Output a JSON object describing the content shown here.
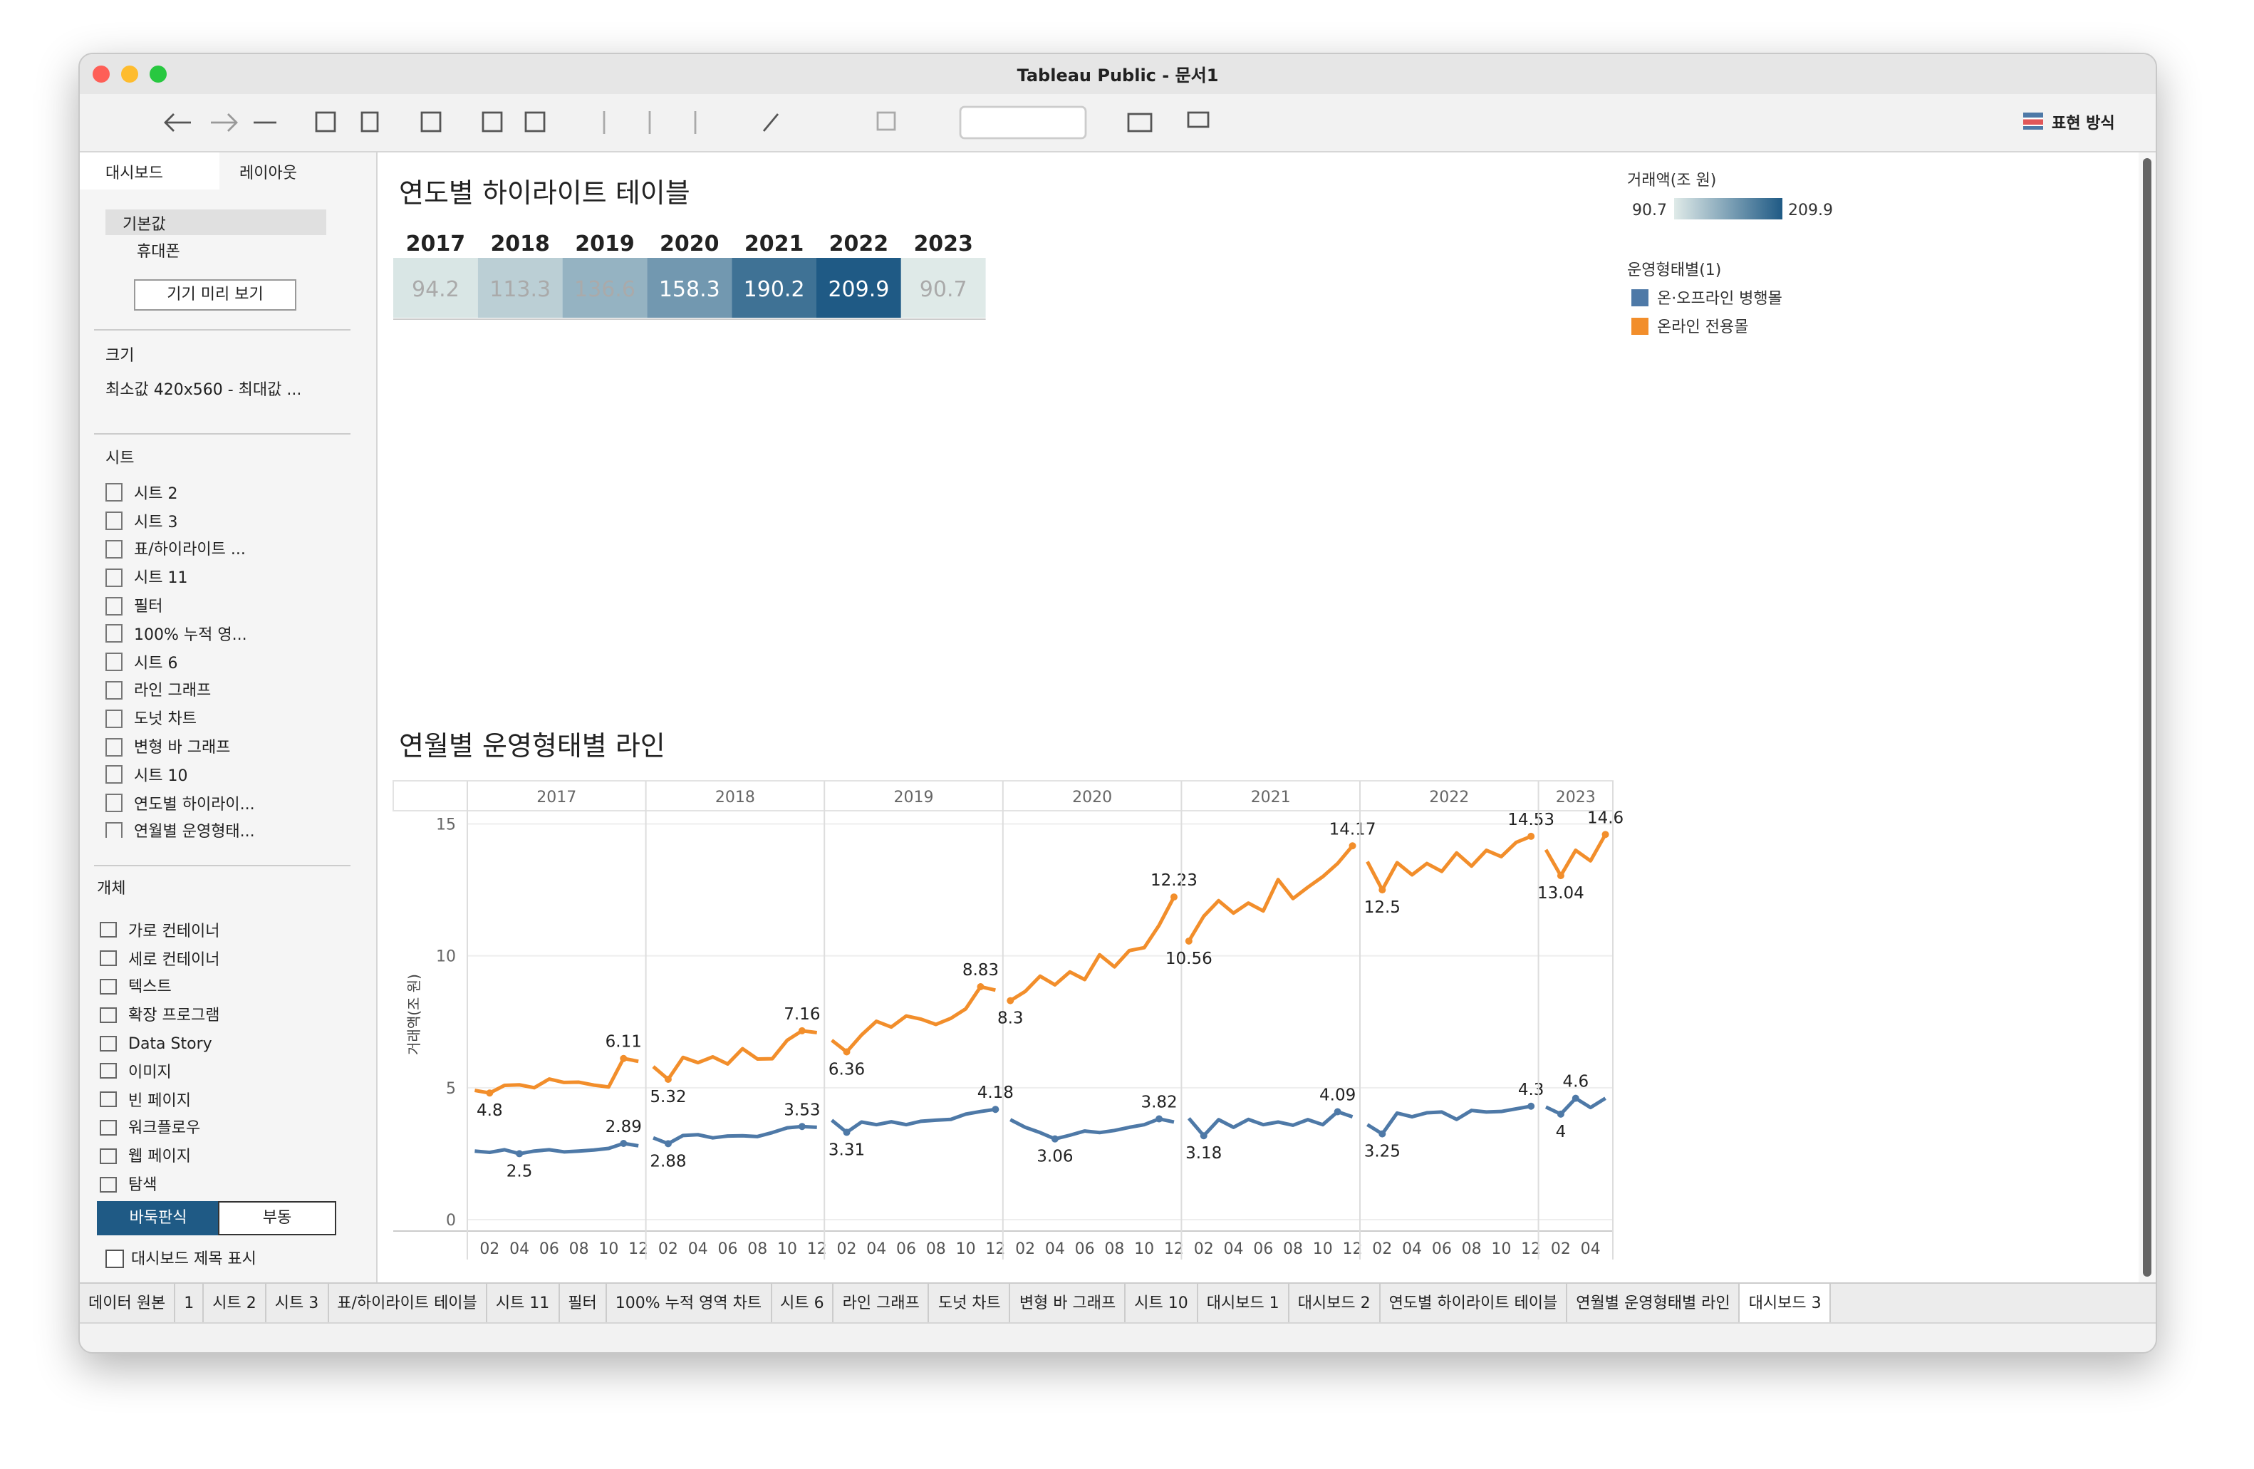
{
  "window": {
    "title": "Tableau Public - 문서1"
  },
  "toolbar": {
    "show_me": "표현 방식"
  },
  "sidebar": {
    "tabs": [
      "대시보드",
      "레이아웃"
    ],
    "devices": [
      "기본값",
      "휴대폰"
    ],
    "preview_button": "기기 미리 보기",
    "size_heading": "크기",
    "size_value": "최소값 420x560 - 최대값 ...",
    "sheets_heading": "시트",
    "sheets": [
      "시트 2",
      "시트 3",
      "표/하이라이트 ...",
      "시트 11",
      "필터",
      "100% 누적 영...",
      "시트 6",
      "라인 그래프",
      "도넛 차트",
      "변형 바 그래프",
      "시트 10",
      "연도별 하이라이...",
      "연월별 운영형태..."
    ],
    "objects_heading": "개체",
    "objects": [
      "가로 컨테이너",
      "세로 컨테이너",
      "텍스트",
      "확장 프로그램",
      "Data Story",
      "이미지",
      "빈 페이지",
      "워크플로우",
      "웹 페이지",
      "탐색"
    ],
    "layout_modes": [
      "바둑판식",
      "부동"
    ],
    "show_title": "대시보드 제목 표시"
  },
  "sheet_tabs": [
    "데이터 원본",
    "1",
    "시트 2",
    "시트 3",
    "표/하이라이트 테이블",
    "시트 11",
    "필터",
    "100% 누적 영역 차트",
    "시트 6",
    "라인 그래프",
    "도넛 차트",
    "변형 바 그래프",
    "시트 10",
    "대시보드 1",
    "대시보드 2",
    "연도별 하이라이트 테이블",
    "연월별 운영형태별 라인",
    "대시보드 3"
  ],
  "highlight_table": {
    "title": "연도별 하이라이트 테이블",
    "years": [
      "2017",
      "2018",
      "2019",
      "2020",
      "2021",
      "2022",
      "2023"
    ],
    "values": [
      94.2,
      113.3,
      136.6,
      158.3,
      190.2,
      209.9,
      90.7
    ],
    "color_legend": {
      "title": "거래액(조 원)",
      "min": 90.7,
      "max": 209.9,
      "colors": [
        "#dfeae8",
        "#1f5a85"
      ]
    }
  },
  "line_chart": {
    "type": "line",
    "title": "연월별 운영형태별 라인",
    "y_label": "거래액(조 원)",
    "legend_title": "운영형태별(1)",
    "years": [
      "2017",
      "2018",
      "2019",
      "2020",
      "2021",
      "2022",
      "2023"
    ],
    "month_ticks": [
      {
        "value": 2,
        "label": "02"
      },
      {
        "value": 4,
        "label": "04"
      },
      {
        "value": 6,
        "label": "06"
      },
      {
        "value": 8,
        "label": "08"
      },
      {
        "value": 10,
        "label": "10"
      },
      {
        "value": 12,
        "label": "12"
      }
    ],
    "ylim": [
      0,
      15.5
    ],
    "yticks": [
      0,
      5,
      10,
      15
    ],
    "grid": true,
    "series": [
      {
        "name": "온·오프라인 병행몰",
        "color": "#4e79a7",
        "values": [
          [
            2.6,
            2.55,
            2.65,
            2.5,
            2.6,
            2.65,
            2.57,
            2.6,
            2.64,
            2.7,
            2.89,
            2.8
          ],
          [
            3.1,
            2.88,
            3.19,
            3.22,
            3.1,
            3.17,
            3.18,
            3.15,
            3.3,
            3.48,
            3.53,
            3.5
          ],
          [
            3.77,
            3.31,
            3.7,
            3.6,
            3.71,
            3.6,
            3.73,
            3.77,
            3.8,
            4.0,
            4.1,
            4.18
          ],
          [
            3.79,
            3.5,
            3.3,
            3.06,
            3.2,
            3.36,
            3.3,
            3.38,
            3.5,
            3.6,
            3.82,
            3.7
          ],
          [
            3.84,
            3.18,
            3.79,
            3.5,
            3.8,
            3.6,
            3.7,
            3.58,
            3.79,
            3.6,
            4.09,
            3.9
          ],
          [
            3.6,
            3.25,
            4.04,
            3.9,
            4.05,
            4.08,
            3.8,
            4.14,
            4.08,
            4.1,
            4.2,
            4.3
          ],
          [
            4.27,
            4.0,
            4.6,
            4.25,
            4.6
          ]
        ]
      },
      {
        "name": "온라인 전용몰",
        "color": "#f28e2b",
        "values": [
          [
            4.9,
            4.8,
            5.09,
            5.11,
            5.0,
            5.33,
            5.2,
            5.21,
            5.1,
            5.03,
            6.11,
            6.0
          ],
          [
            5.8,
            5.32,
            6.15,
            5.95,
            6.17,
            5.9,
            6.48,
            6.09,
            6.1,
            6.8,
            7.16,
            7.09
          ],
          [
            6.8,
            6.36,
            7.0,
            7.52,
            7.3,
            7.72,
            7.6,
            7.4,
            7.63,
            7.99,
            8.83,
            8.7
          ],
          [
            8.3,
            8.65,
            9.23,
            8.9,
            9.39,
            9.1,
            10.04,
            9.58,
            10.2,
            10.31,
            11.16,
            12.23
          ],
          [
            10.56,
            11.5,
            12.09,
            11.62,
            12.0,
            11.7,
            12.89,
            12.17,
            12.6,
            13.0,
            13.5,
            14.17
          ],
          [
            13.57,
            12.5,
            13.53,
            13.07,
            13.5,
            13.2,
            13.9,
            13.4,
            14.0,
            13.76,
            14.3,
            14.53
          ],
          [
            14.02,
            13.04,
            14.0,
            13.6,
            14.6
          ]
        ]
      }
    ]
  }
}
